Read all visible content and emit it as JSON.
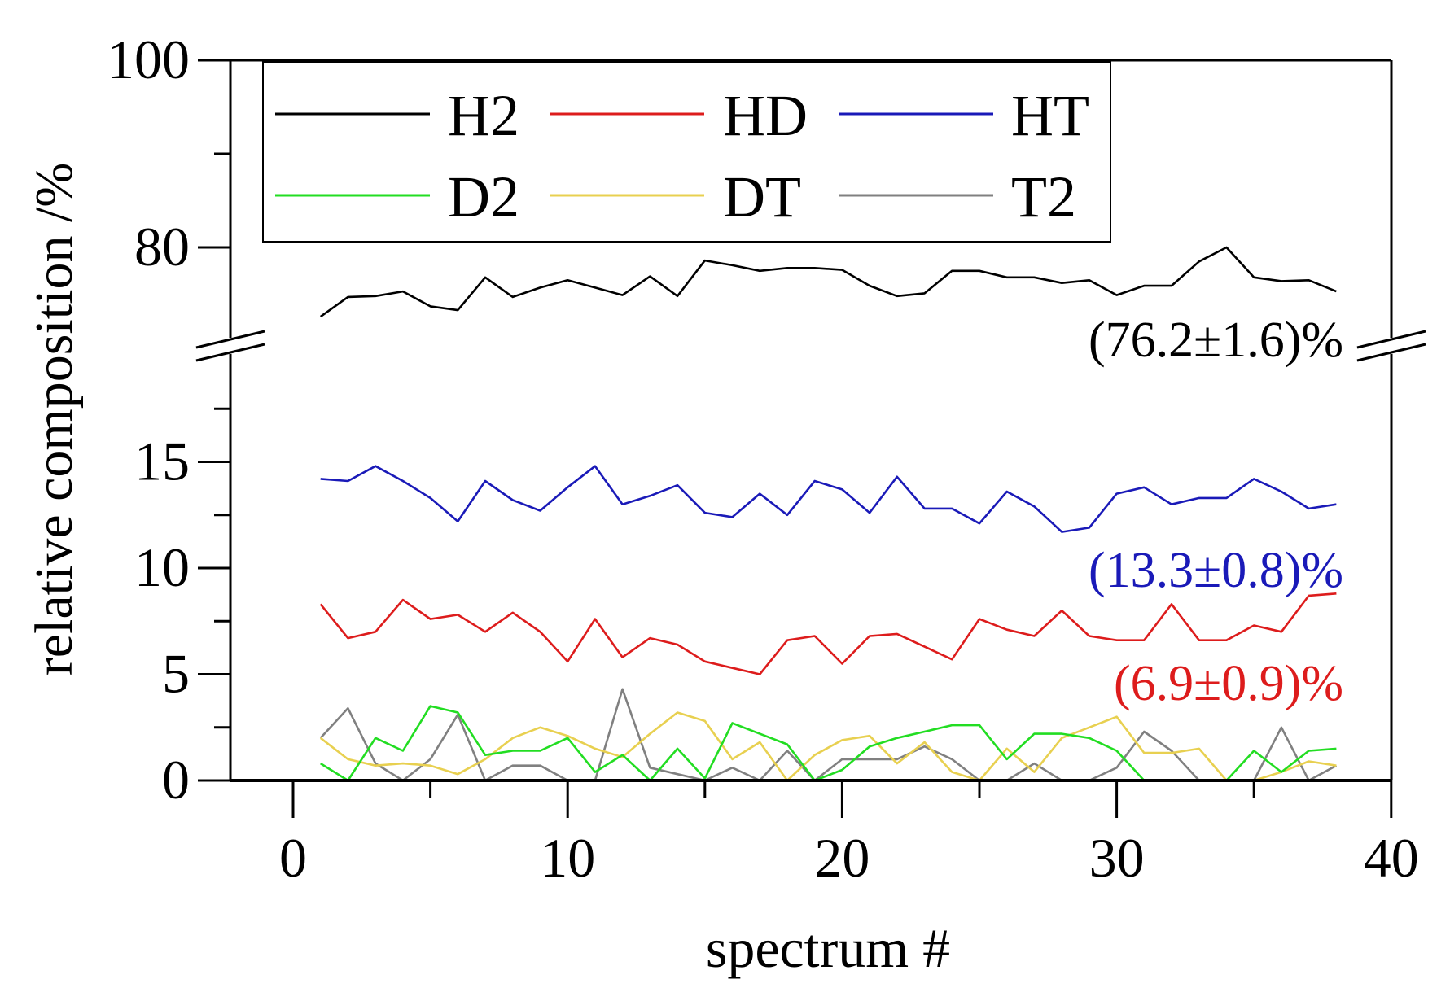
{
  "chart_data": {
    "type": "line",
    "title": "",
    "xlabel": "spectrum #",
    "ylabel": "relative composition /%",
    "xlim": [
      -1,
      40
    ],
    "x_ticks": [
      "0",
      "10",
      "20",
      "30",
      "40"
    ],
    "y_axis_broken": true,
    "ylim_lower": [
      0,
      19
    ],
    "ylim_upper": [
      71,
      100
    ],
    "y_ticks_lower": [
      "0",
      "5",
      "10",
      "15"
    ],
    "y_ticks_upper": [
      "80",
      "100"
    ],
    "legend_placement": "top-left",
    "x": [
      1,
      2,
      3,
      4,
      5,
      6,
      7,
      8,
      9,
      10,
      11,
      12,
      13,
      14,
      15,
      16,
      17,
      18,
      19,
      20,
      21,
      22,
      23,
      24,
      25,
      26,
      27,
      28,
      29,
      30,
      31,
      32,
      33,
      34,
      35,
      36,
      37,
      38
    ],
    "series": [
      {
        "name": "H2",
        "color": "#000000",
        "axis": "upper",
        "values": [
          72.6,
          74.7,
          74.8,
          75.3,
          73.7,
          73.3,
          76.8,
          74.7,
          75.7,
          76.5,
          75.7,
          74.9,
          76.9,
          74.8,
          78.6,
          78.1,
          77.5,
          77.8,
          77.8,
          77.6,
          75.9,
          74.8,
          75.1,
          77.5,
          77.5,
          76.8,
          76.8,
          76.2,
          76.5,
          74.9,
          75.9,
          75.9,
          78.5,
          80.0,
          76.8,
          76.4,
          76.5,
          75.3
        ]
      },
      {
        "name": "HD",
        "color": "#dd1c1c",
        "axis": "lower",
        "values": [
          8.3,
          6.7,
          7.0,
          8.5,
          7.6,
          7.8,
          7.0,
          7.9,
          7.0,
          5.6,
          7.6,
          5.8,
          6.7,
          6.4,
          5.6,
          5.3,
          5.0,
          6.6,
          6.8,
          5.5,
          6.8,
          6.9,
          6.3,
          5.7,
          7.6,
          7.1,
          6.8,
          8.0,
          6.8,
          6.6,
          6.6,
          8.3,
          6.6,
          6.6,
          7.3,
          7.0,
          8.7,
          8.8
        ]
      },
      {
        "name": "HT",
        "color": "#1a1ab8",
        "axis": "lower",
        "values": [
          14.2,
          14.1,
          14.8,
          14.1,
          13.3,
          12.2,
          14.1,
          13.2,
          12.7,
          13.8,
          14.8,
          13.0,
          13.4,
          13.9,
          12.6,
          12.4,
          13.5,
          12.5,
          14.1,
          13.7,
          12.6,
          14.3,
          12.8,
          12.8,
          12.1,
          13.6,
          12.9,
          11.7,
          11.9,
          13.5,
          13.8,
          13.0,
          13.3,
          13.3,
          14.2,
          13.6,
          12.8,
          13.0
        ]
      },
      {
        "name": "D2",
        "color": "#22dd22",
        "axis": "lower",
        "values": [
          0.8,
          0,
          2.0,
          1.4,
          3.5,
          3.2,
          1.2,
          1.4,
          1.4,
          2.0,
          0.4,
          1.2,
          0,
          1.5,
          0.1,
          2.7,
          2.2,
          1.7,
          0,
          0.5,
          1.6,
          2.0,
          2.3,
          2.6,
          2.6,
          1.0,
          2.2,
          2.2,
          2.0,
          1.4,
          0,
          0,
          0,
          0,
          1.4,
          0.4,
          1.4,
          1.5
        ]
      },
      {
        "name": "DT",
        "color": "#e8d050",
        "axis": "lower",
        "values": [
          2.0,
          1.0,
          0.7,
          0.8,
          0.7,
          0.3,
          1.0,
          2.0,
          2.5,
          2.1,
          1.5,
          1.1,
          2.2,
          3.2,
          2.8,
          1.0,
          1.8,
          0,
          1.2,
          1.9,
          2.1,
          0.8,
          1.8,
          0.4,
          0,
          1.5,
          0.4,
          2.0,
          2.5,
          3.0,
          1.3,
          1.3,
          1.5,
          0,
          0,
          0.4,
          0.9,
          0.7
        ]
      },
      {
        "name": "T2",
        "color": "#808080",
        "axis": "lower",
        "values": [
          2.0,
          3.4,
          0.8,
          0,
          1.0,
          3.1,
          0,
          0.7,
          0.7,
          0,
          0,
          4.3,
          0.6,
          0.3,
          0,
          0.6,
          0,
          1.4,
          0,
          1.0,
          1.0,
          1.0,
          1.6,
          1.0,
          0,
          0,
          0.8,
          0,
          0,
          0.6,
          2.3,
          1.4,
          0,
          0,
          0,
          2.5,
          0,
          0.7
        ]
      }
    ],
    "annotations": [
      {
        "text": "(76.2±1.6)%",
        "color": "#000000"
      },
      {
        "text": "(13.3±0.8)%",
        "color": "#1a1ab8"
      },
      {
        "text": "(6.9±0.9)%",
        "color": "#dd1c1c"
      }
    ]
  }
}
